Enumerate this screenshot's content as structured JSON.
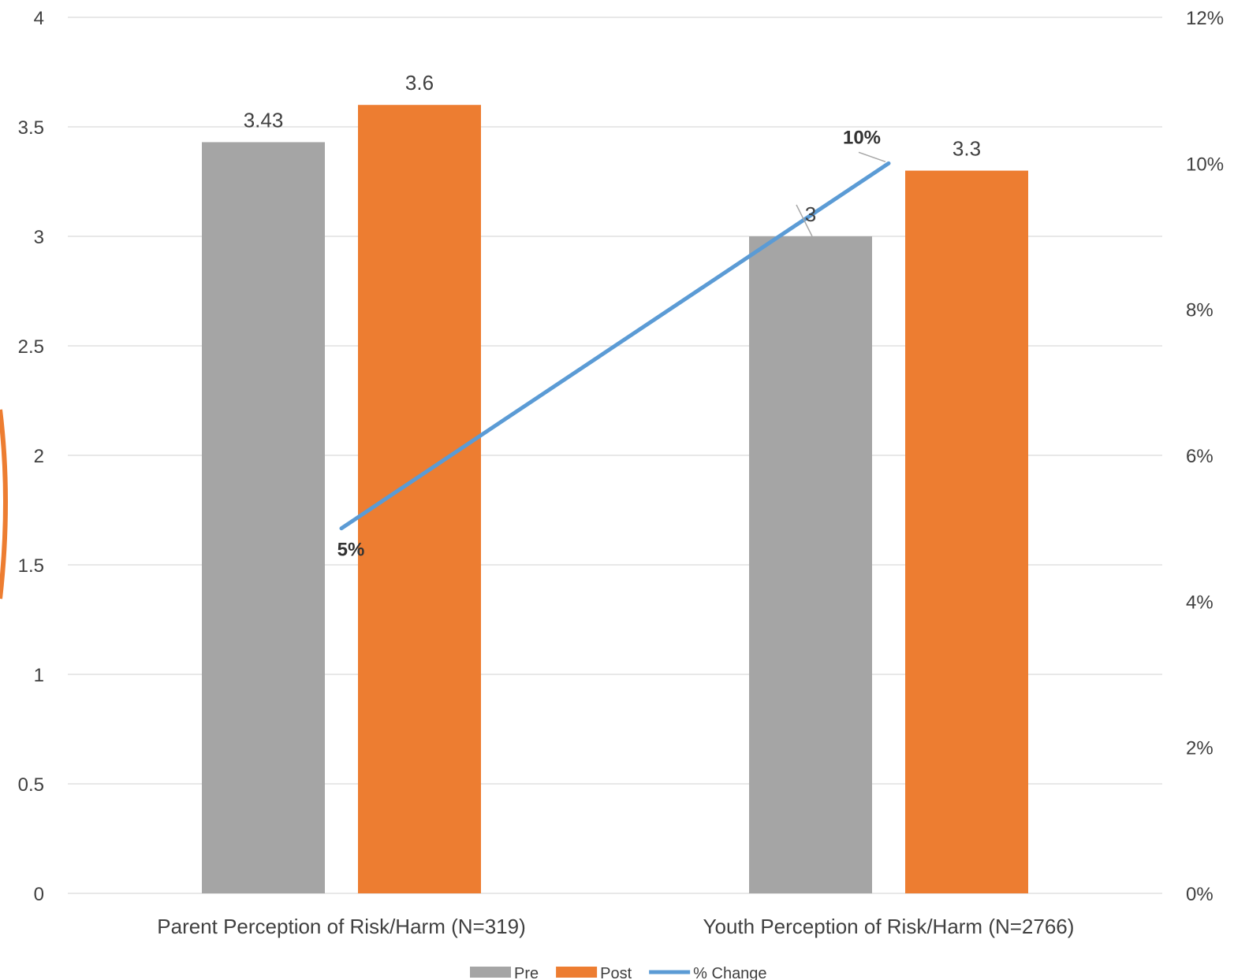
{
  "chart_data": {
    "type": "bar",
    "categories": [
      "Parent Perception of Risk/Harm (N=319)",
      "Youth Perception of Risk/Harm (N=2766)"
    ],
    "series": [
      {
        "name": "Pre",
        "kind": "bar",
        "axis": "left",
        "color": "#a5a5a5",
        "values": [
          3.43,
          3
        ],
        "labels": [
          "3.43",
          "3"
        ]
      },
      {
        "name": "Post",
        "kind": "bar",
        "axis": "left",
        "color": "#ed7d31",
        "values": [
          3.6,
          3.3
        ],
        "labels": [
          "3.6",
          "3.3"
        ]
      },
      {
        "name": "% Change",
        "kind": "line",
        "axis": "right",
        "color": "#5b9bd5",
        "values": [
          5,
          10
        ],
        "labels": [
          "5%",
          "10%"
        ]
      }
    ],
    "y_left": {
      "min": 0,
      "max": 4,
      "ticks": [
        "0",
        "0.5",
        "1",
        "1.5",
        "2",
        "2.5",
        "3",
        "3.5",
        "4"
      ]
    },
    "y_right": {
      "min": 0,
      "max": 12,
      "ticks": [
        "0%",
        "2%",
        "4%",
        "6%",
        "8%",
        "10%",
        "12%"
      ]
    },
    "grid": true,
    "legend": "bottom-center",
    "title": "",
    "xlabel": "",
    "ylabel": ""
  }
}
